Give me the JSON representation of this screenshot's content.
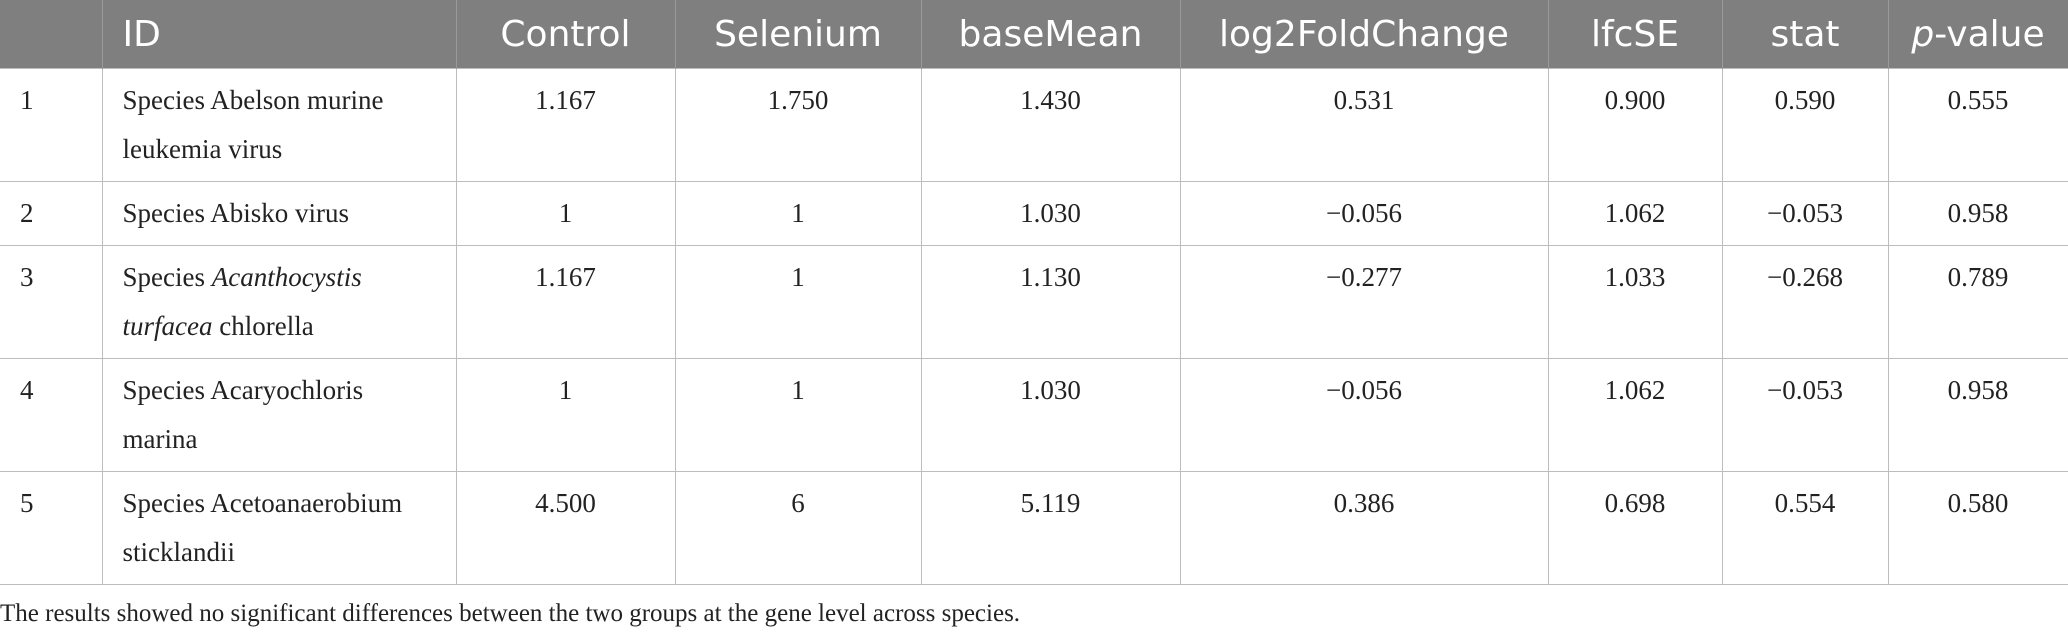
{
  "table": {
    "columns": {
      "num": "",
      "id": "ID",
      "control": "Control",
      "selenium": "Selenium",
      "basemean": "baseMean",
      "log2fc": "log2FoldChange",
      "lfcse": "lfcSE",
      "stat": "stat",
      "pvalue_italic": "p",
      "pvalue_rest": "-value"
    },
    "rows": [
      {
        "num": "1",
        "id_plain1": "Species Abelson murine leukemia virus",
        "id_italic": "",
        "id_plain2": "",
        "control": "1.167",
        "selenium": "1.750",
        "basemean": "1.430",
        "log2fc": "0.531",
        "lfcse": "0.900",
        "stat": "0.590",
        "pvalue": "0.555"
      },
      {
        "num": "2",
        "id_plain1": "Species Abisko virus",
        "id_italic": "",
        "id_plain2": "",
        "control": "1",
        "selenium": "1",
        "basemean": "1.030",
        "log2fc": "−0.056",
        "lfcse": "1.062",
        "stat": "−0.053",
        "pvalue": "0.958"
      },
      {
        "num": "3",
        "id_plain1": "Species ",
        "id_italic": "Acanthocystis turfacea",
        "id_plain2": " chlorella",
        "control": "1.167",
        "selenium": "1",
        "basemean": "1.130",
        "log2fc": "−0.277",
        "lfcse": "1.033",
        "stat": "−0.268",
        "pvalue": "0.789"
      },
      {
        "num": "4",
        "id_plain1": "Species Acaryochloris marina",
        "id_italic": "",
        "id_plain2": "",
        "control": "1",
        "selenium": "1",
        "basemean": "1.030",
        "log2fc": "−0.056",
        "lfcse": "1.062",
        "stat": "−0.053",
        "pvalue": "0.958"
      },
      {
        "num": "5",
        "id_plain1": "Species Acetoanaerobium sticklandii",
        "id_italic": "",
        "id_plain2": "",
        "control": "4.500",
        "selenium": "6",
        "basemean": "5.119",
        "log2fc": "0.386",
        "lfcse": "0.698",
        "stat": "0.554",
        "pvalue": "0.580"
      }
    ]
  },
  "footnote": "The results showed no significant differences between the two groups at the gene level across species."
}
